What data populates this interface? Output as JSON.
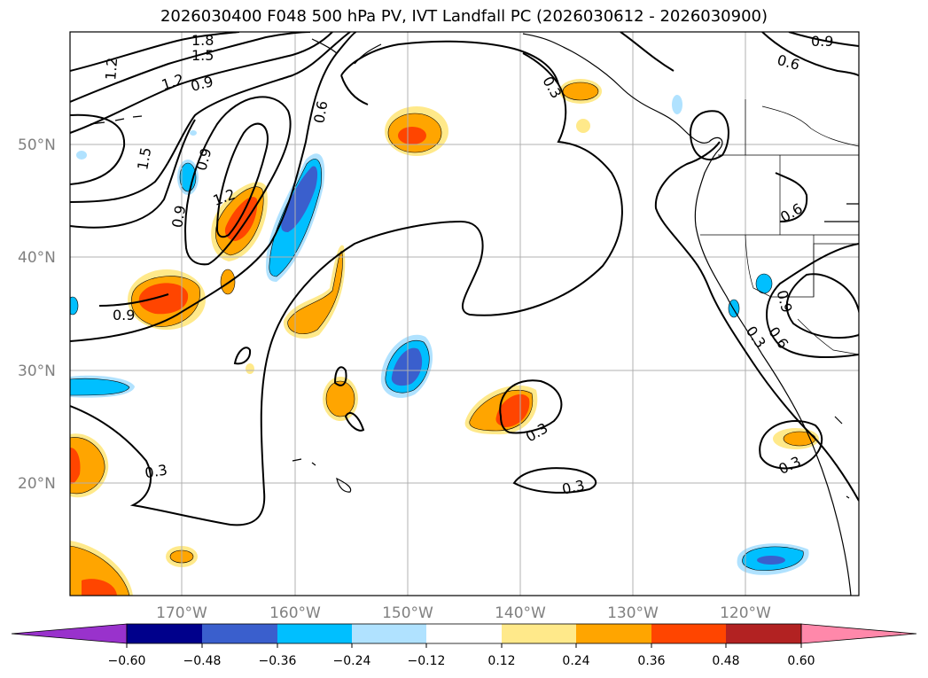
{
  "title": "2026030400 F048 500 hPa PV, IVT Landfall PC (2026030612 - 2026030900)",
  "map": {
    "lat_labels": [
      "50°N",
      "40°N",
      "30°N",
      "20°N"
    ],
    "lon_labels": [
      "170°W",
      "160°W",
      "150°W",
      "140°W",
      "130°W",
      "120°W"
    ],
    "contour_labels": [
      "1.8",
      "1.5",
      "1.2",
      "1.2",
      "0.9",
      "1.5",
      "0.9",
      "1.2",
      "0.9",
      "0.6",
      "0.9",
      "0.3",
      "0.3",
      "0.3",
      "0.3",
      "0.9",
      "0.6",
      "0.6",
      "0.9",
      "0.3",
      "0.6",
      "0.3"
    ]
  },
  "colorbar": {
    "colors": [
      "#9932cc",
      "#00008b",
      "#3a5fcd",
      "#00bfff",
      "#b0e2ff",
      "#ffffff",
      "#ffe98a",
      "#ffa500",
      "#ff4500",
      "#b22222",
      "#ff88aa"
    ],
    "ticks": [
      "−0.60",
      "−0.48",
      "−0.36",
      "−0.24",
      "−0.12",
      "0.12",
      "0.24",
      "0.36",
      "0.48",
      "0.60"
    ]
  }
}
